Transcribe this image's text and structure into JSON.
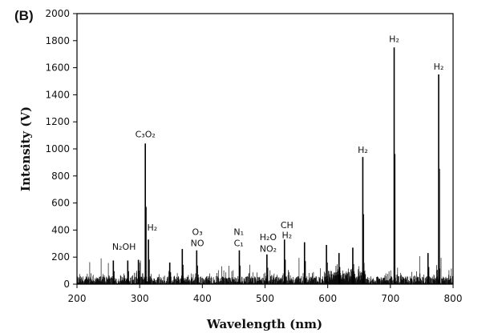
{
  "chart_data": {
    "type": "line",
    "panel_label": "(B)",
    "xlabel": "Wavelength (nm)",
    "ylabel": "Intensity (V)",
    "xlim": [
      200,
      800
    ],
    "ylim": [
      0,
      2000
    ],
    "x_ticks": [
      200,
      300,
      400,
      500,
      600,
      700,
      800
    ],
    "y_ticks": [
      0,
      200,
      400,
      600,
      800,
      1000,
      1200,
      1400,
      1600,
      1800,
      2000
    ],
    "grid": false,
    "series": [
      {
        "color": "#000000",
        "peaks": [
          {
            "x": 258,
            "y": 175
          },
          {
            "x": 281,
            "y": 175
          },
          {
            "x": 298,
            "y": 180
          },
          {
            "x": 309,
            "y": 1040
          },
          {
            "x": 314,
            "y": 330
          },
          {
            "x": 348,
            "y": 160
          },
          {
            "x": 368,
            "y": 260
          },
          {
            "x": 391,
            "y": 250
          },
          {
            "x": 459,
            "y": 250
          },
          {
            "x": 503,
            "y": 220
          },
          {
            "x": 531,
            "y": 330
          },
          {
            "x": 563,
            "y": 310
          },
          {
            "x": 598,
            "y": 290
          },
          {
            "x": 618,
            "y": 230
          },
          {
            "x": 640,
            "y": 270
          },
          {
            "x": 656,
            "y": 940
          },
          {
            "x": 706,
            "y": 1750
          },
          {
            "x": 760,
            "y": 230
          },
          {
            "x": 777,
            "y": 1550
          }
        ]
      }
    ],
    "annotations": [
      {
        "text": "C₃O₂",
        "x": 309,
        "y": 1085
      },
      {
        "text": "H₂",
        "x": 320,
        "y": 395
      },
      {
        "text": "N₂OH",
        "x": 275,
        "y": 255
      },
      {
        "text": "O₃",
        "x": 392,
        "y": 365
      },
      {
        "text": "NO",
        "x": 392,
        "y": 280
      },
      {
        "text": "N₁",
        "x": 458,
        "y": 365
      },
      {
        "text": "C₁",
        "x": 458,
        "y": 280
      },
      {
        "text": "H₂O",
        "x": 505,
        "y": 325
      },
      {
        "text": "NO₂",
        "x": 505,
        "y": 240
      },
      {
        "text": "CH",
        "x": 535,
        "y": 415
      },
      {
        "text": "H₂",
        "x": 535,
        "y": 340
      },
      {
        "text": "H₂",
        "x": 656,
        "y": 970
      },
      {
        "text": "H₂",
        "x": 706,
        "y": 1790
      },
      {
        "text": "H₂",
        "x": 777,
        "y": 1585
      }
    ]
  }
}
